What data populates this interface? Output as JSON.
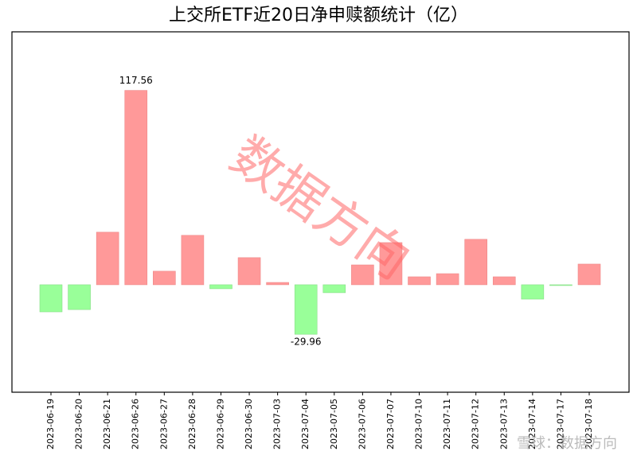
{
  "chart_data": {
    "type": "bar",
    "title": "上交所ETF近20日净申赎额统计（亿）",
    "categories": [
      "2023-06-19",
      "2023-06-20",
      "2023-06-21",
      "2023-06-26",
      "2023-06-27",
      "2023-06-28",
      "2023-06-29",
      "2023-06-30",
      "2023-07-03",
      "2023-07-04",
      "2023-07-05",
      "2023-07-06",
      "2023-07-07",
      "2023-07-10",
      "2023-07-11",
      "2023-07-12",
      "2023-07-13",
      "2023-07-14",
      "2023-07-17",
      "2023-07-18"
    ],
    "values": [
      -16.4,
      -15,
      31.8,
      117.56,
      8.2,
      29.9,
      -2.4,
      16.4,
      1.4,
      -29.96,
      -4.8,
      12,
      25.5,
      4.8,
      6.7,
      27.5,
      4.8,
      -8.7,
      -0.4,
      12.5
    ],
    "value_labels": [
      null,
      null,
      null,
      "117.56",
      null,
      null,
      null,
      null,
      null,
      "-29.96",
      null,
      null,
      null,
      null,
      null,
      null,
      null,
      null,
      null,
      null
    ],
    "positive_color": "#ff9999",
    "negative_color": "#99ff99",
    "ylim": [
      -65,
      153
    ],
    "watermark": "数据方向",
    "source": "雪球：数据方向"
  }
}
